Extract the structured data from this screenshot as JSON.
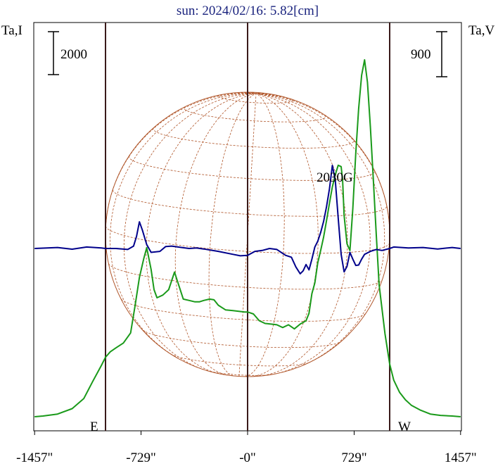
{
  "chart_data": {
    "type": "line",
    "title": "sun: 2024/02/16: 5.82[cm]",
    "left_axis_label": "Ta,I",
    "right_axis_label": "Ta,V",
    "left_scale_bar": "2000",
    "right_scale_bar": "900",
    "x_tick_labels": [
      "-1457\"",
      "-729\"",
      "-0\"",
      "729\"",
      "1457\""
    ],
    "x_ticks": [
      -1457,
      -729,
      0,
      729,
      1457
    ],
    "xlim": [
      -1457,
      1457
    ],
    "limb_markers": [
      {
        "label": "E",
        "x": -972
      },
      {
        "label": "W",
        "x": 972
      }
    ],
    "annotation": {
      "text": "2030G",
      "x": 620
    },
    "disk": {
      "center_x": 0,
      "radius_arcsec": 972
    },
    "colors": {
      "stokes_i": "#1a9a1a",
      "stokes_v": "#00008b",
      "grid": "#b0562a",
      "frame_lines": "#3a1a1a",
      "title": "#1a237e"
    },
    "series": [
      {
        "name": "Ta,I",
        "color": "#1a9a1a",
        "x": [
          -1457,
          -1400,
          -1300,
          -1200,
          -1120,
          -1060,
          -1000,
          -972,
          -940,
          -900,
          -850,
          -800,
          -770,
          -740,
          -710,
          -690,
          -660,
          -640,
          -620,
          -580,
          -540,
          -500,
          -470,
          -440,
          -400,
          -360,
          -330,
          -300,
          -260,
          -230,
          -200,
          -150,
          -100,
          -60,
          -20,
          0,
          40,
          80,
          120,
          160,
          200,
          240,
          280,
          320,
          360,
          400,
          420,
          440,
          460,
          480,
          500,
          520,
          540,
          560,
          580,
          600,
          620,
          640,
          650,
          660,
          680,
          700,
          720,
          740,
          760,
          780,
          800,
          820,
          840,
          860,
          880,
          900,
          940,
          972,
          1000,
          1040,
          1080,
          1120,
          1180,
          1250,
          1320,
          1400,
          1457
        ],
        "y": [
          0,
          10,
          40,
          120,
          270,
          520,
          760,
          880,
          960,
          1020,
          1090,
          1240,
          1640,
          2060,
          2340,
          2500,
          2180,
          1880,
          1760,
          1800,
          1880,
          2140,
          1940,
          1740,
          1720,
          1700,
          1700,
          1720,
          1740,
          1730,
          1650,
          1580,
          1570,
          1560,
          1550,
          1550,
          1520,
          1420,
          1380,
          1370,
          1360,
          1320,
          1360,
          1300,
          1370,
          1420,
          1530,
          1820,
          1980,
          2280,
          2460,
          2660,
          2900,
          3160,
          3400,
          3580,
          3720,
          3700,
          3500,
          2980,
          2560,
          2460,
          3080,
          3900,
          4560,
          5050,
          5280,
          4950,
          4280,
          3520,
          2700,
          1950,
          1230,
          780,
          540,
          360,
          250,
          170,
          100,
          40,
          20,
          10,
          0
        ]
      },
      {
        "name": "Ta,V",
        "color": "#00008b",
        "x": [
          -1457,
          -1300,
          -1200,
          -1100,
          -1000,
          -972,
          -900,
          -820,
          -780,
          -760,
          -740,
          -720,
          -690,
          -660,
          -600,
          -560,
          -520,
          -450,
          -400,
          -350,
          -300,
          -200,
          -100,
          -50,
          0,
          50,
          100,
          150,
          200,
          260,
          300,
          330,
          360,
          380,
          400,
          420,
          440,
          460,
          480,
          500,
          520,
          540,
          560,
          580,
          600,
          620,
          640,
          660,
          680,
          700,
          720,
          740,
          760,
          780,
          800,
          840,
          880,
          920,
          972,
          1000,
          1100,
          1200,
          1300,
          1400,
          1457
        ],
        "y": [
          0,
          20,
          -15,
          30,
          10,
          0,
          0,
          -20,
          50,
          250,
          550,
          380,
          80,
          -80,
          -60,
          40,
          50,
          20,
          0,
          10,
          -10,
          -60,
          -120,
          -150,
          -140,
          -60,
          -40,
          0,
          -20,
          -140,
          -180,
          -380,
          -520,
          -460,
          -330,
          -440,
          -220,
          30,
          150,
          330,
          560,
          860,
          1230,
          1710,
          1400,
          630,
          -120,
          -480,
          -370,
          -80,
          -220,
          -350,
          -340,
          -220,
          -120,
          -60,
          -20,
          -40,
          0,
          30,
          10,
          20,
          -10,
          20,
          0
        ]
      }
    ]
  }
}
